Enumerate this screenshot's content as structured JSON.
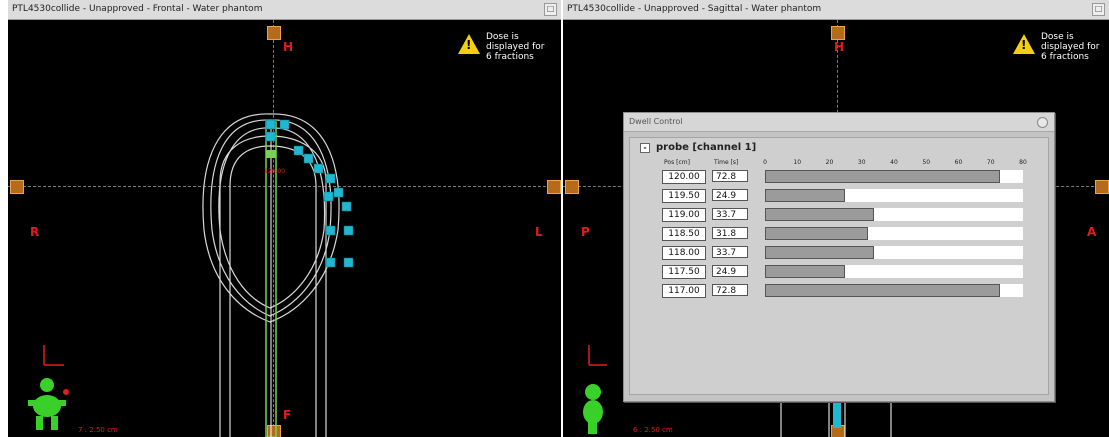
{
  "left_view": {
    "title": "PTL4530collide - Unapproved - Frontal - Water phantom",
    "orientation": {
      "top": "H",
      "bottom": "F",
      "left": "R",
      "right": "L"
    },
    "warning": "Dose is displayed for 6 fractions",
    "scale_text": "7 : 2.50 cm",
    "dose_label": "120.00"
  },
  "right_view": {
    "title": "PTL4530collide - Unapproved - Sagittal - Water phantom",
    "orientation": {
      "top": "H",
      "left": "P",
      "right": "A"
    },
    "warning": "Dose is displayed for 6 fractions",
    "scale_text": "6 : 2.50 cm"
  },
  "dwell_control": {
    "title": "Dwell Control",
    "channel_label": "probe [channel 1]",
    "collapse_symbol": "-",
    "col_pos": "Pos [cm]",
    "col_time": "Time [s]",
    "time_axis_max": 80,
    "time_ticks": [
      "0",
      "10",
      "20",
      "30",
      "40",
      "50",
      "60",
      "70",
      "80"
    ],
    "rows": [
      {
        "pos": "120.00",
        "time": "72.8",
        "value": 72.8
      },
      {
        "pos": "119.50",
        "time": "24.9",
        "value": 24.9
      },
      {
        "pos": "119.00",
        "time": "33.7",
        "value": 33.7
      },
      {
        "pos": "118.50",
        "time": "31.8",
        "value": 31.8
      },
      {
        "pos": "118.00",
        "time": "33.7",
        "value": 33.7
      },
      {
        "pos": "117.50",
        "time": "24.9",
        "value": 24.9
      },
      {
        "pos": "117.00",
        "time": "72.8",
        "value": 72.8
      }
    ]
  },
  "colors": {
    "background": "#000000",
    "orientation_label": "#e21c1c",
    "marker": "#b56b1b",
    "dwell_bar": "#9b9b9b",
    "dwell_point": "#20b8d0",
    "isodose": "#d8d8d8",
    "applicator": "#7ad04f"
  },
  "icons": {
    "warning": "warning-triangle-icon",
    "patient_figure": "patient-orientation-icon"
  }
}
